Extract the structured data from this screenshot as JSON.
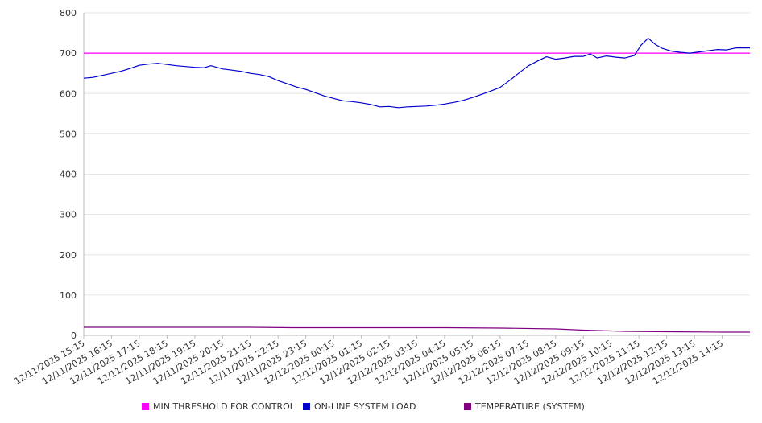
{
  "chart_data": {
    "type": "line",
    "title": "",
    "xlabel": "",
    "ylabel": "",
    "ylim": [
      0,
      800
    ],
    "yticks": [
      "0",
      "100",
      "200",
      "300",
      "400",
      "500",
      "600",
      "700",
      "800"
    ],
    "xlim": [
      "12/11/2025 15:15",
      "12/12/2025 15:15"
    ],
    "xticks": [
      "12/11/2025 15:15",
      "12/11/2025 16:15",
      "12/11/2025 17:15",
      "12/11/2025 18:15",
      "12/11/2025 19:15",
      "12/11/2025 20:15",
      "12/11/2025 21:15",
      "12/11/2025 22:15",
      "12/11/2025 23:15",
      "12/12/2025 00:15",
      "12/12/2025 01:15",
      "12/12/2025 02:15",
      "12/12/2025 03:15",
      "12/12/2025 04:15",
      "12/12/2025 05:15",
      "12/12/2025 06:15",
      "12/12/2025 07:15",
      "12/12/2025 08:15",
      "12/12/2025 09:15",
      "12/12/2025 10:15",
      "12/12/2025 11:15",
      "12/12/2025 12:15",
      "12/12/2025 13:15",
      "12/12/2025 14:15"
    ],
    "grid": true,
    "legend_position": "bottom",
    "series": [
      {
        "name": "MIN THRESHOLD FOR CONTROL",
        "color": "#ff00ff",
        "points": [
          [
            "12/11/2025 15:15",
            700
          ],
          [
            "12/12/2025 15:15",
            700
          ]
        ]
      },
      {
        "name": "ON-LINE SYSTEM LOAD",
        "color": "#0000cc",
        "points": [
          [
            "12/11/2025 15:15",
            638
          ],
          [
            "12/11/2025 15:35",
            640
          ],
          [
            "12/11/2025 15:55",
            645
          ],
          [
            "12/11/2025 16:15",
            650
          ],
          [
            "12/11/2025 16:35",
            655
          ],
          [
            "12/11/2025 16:55",
            662
          ],
          [
            "12/11/2025 17:15",
            670
          ],
          [
            "12/11/2025 17:35",
            673
          ],
          [
            "12/11/2025 17:55",
            675
          ],
          [
            "12/11/2025 18:15",
            672
          ],
          [
            "12/11/2025 18:35",
            669
          ],
          [
            "12/11/2025 18:55",
            667
          ],
          [
            "12/11/2025 19:15",
            665
          ],
          [
            "12/11/2025 19:35",
            664
          ],
          [
            "12/11/2025 19:50",
            669
          ],
          [
            "12/11/2025 20:15",
            661
          ],
          [
            "12/11/2025 20:35",
            658
          ],
          [
            "12/11/2025 20:55",
            655
          ],
          [
            "12/11/2025 21:15",
            650
          ],
          [
            "12/11/2025 21:35",
            647
          ],
          [
            "12/11/2025 21:55",
            642
          ],
          [
            "12/11/2025 22:15",
            632
          ],
          [
            "12/11/2025 22:35",
            624
          ],
          [
            "12/11/2025 22:55",
            616
          ],
          [
            "12/11/2025 23:15",
            610
          ],
          [
            "12/11/2025 23:35",
            602
          ],
          [
            "12/11/2025 23:55",
            594
          ],
          [
            "12/12/2025 00:15",
            588
          ],
          [
            "12/12/2025 00:35",
            582
          ],
          [
            "12/12/2025 00:55",
            580
          ],
          [
            "12/12/2025 01:15",
            577
          ],
          [
            "12/12/2025 01:35",
            573
          ],
          [
            "12/12/2025 01:55",
            567
          ],
          [
            "12/12/2025 02:15",
            568
          ],
          [
            "12/12/2025 02:35",
            565
          ],
          [
            "12/12/2025 02:55",
            567
          ],
          [
            "12/12/2025 03:15",
            568
          ],
          [
            "12/12/2025 03:35",
            569
          ],
          [
            "12/12/2025 03:55",
            571
          ],
          [
            "12/12/2025 04:15",
            574
          ],
          [
            "12/12/2025 04:35",
            578
          ],
          [
            "12/12/2025 04:55",
            583
          ],
          [
            "12/12/2025 05:15",
            590
          ],
          [
            "12/12/2025 05:35",
            598
          ],
          [
            "12/12/2025 05:55",
            606
          ],
          [
            "12/12/2025 06:15",
            615
          ],
          [
            "12/12/2025 06:35",
            632
          ],
          [
            "12/12/2025 06:55",
            650
          ],
          [
            "12/12/2025 07:15",
            668
          ],
          [
            "12/12/2025 07:35",
            680
          ],
          [
            "12/12/2025 07:55",
            691
          ],
          [
            "12/12/2025 08:15",
            685
          ],
          [
            "12/12/2025 08:35",
            688
          ],
          [
            "12/12/2025 08:55",
            692
          ],
          [
            "12/12/2025 09:15",
            692
          ],
          [
            "12/12/2025 09:30",
            698
          ],
          [
            "12/12/2025 09:45",
            688
          ],
          [
            "12/12/2025 10:05",
            693
          ],
          [
            "12/12/2025 10:25",
            690
          ],
          [
            "12/12/2025 10:45",
            688
          ],
          [
            "12/12/2025 11:05",
            694
          ],
          [
            "12/12/2025 11:20",
            720
          ],
          [
            "12/12/2025 11:35",
            737
          ],
          [
            "12/12/2025 11:50",
            722
          ],
          [
            "12/12/2025 12:05",
            712
          ],
          [
            "12/12/2025 12:25",
            705
          ],
          [
            "12/12/2025 12:45",
            702
          ],
          [
            "12/12/2025 13:05",
            700
          ],
          [
            "12/12/2025 13:25",
            703
          ],
          [
            "12/12/2025 13:45",
            706
          ],
          [
            "12/12/2025 14:05",
            709
          ],
          [
            "12/12/2025 14:25",
            708
          ],
          [
            "12/12/2025 14:45",
            713
          ],
          [
            "12/12/2025 15:15",
            713
          ]
        ]
      },
      {
        "name": "TEMPERATURE (SYSTEM)",
        "color": "#800080",
        "points": [
          [
            "12/11/2025 15:15",
            20
          ],
          [
            "12/11/2025 21:15",
            20
          ],
          [
            "12/11/2025 22:45",
            19
          ],
          [
            "12/12/2025 01:15",
            19
          ],
          [
            "12/12/2025 04:15",
            19
          ],
          [
            "12/12/2025 06:15",
            18
          ],
          [
            "12/12/2025 08:15",
            16
          ],
          [
            "12/12/2025 09:15",
            13
          ],
          [
            "12/12/2025 10:45",
            10
          ],
          [
            "12/12/2025 12:15",
            9
          ],
          [
            "12/12/2025 14:15",
            8
          ],
          [
            "12/12/2025 15:15",
            8
          ]
        ]
      }
    ]
  }
}
